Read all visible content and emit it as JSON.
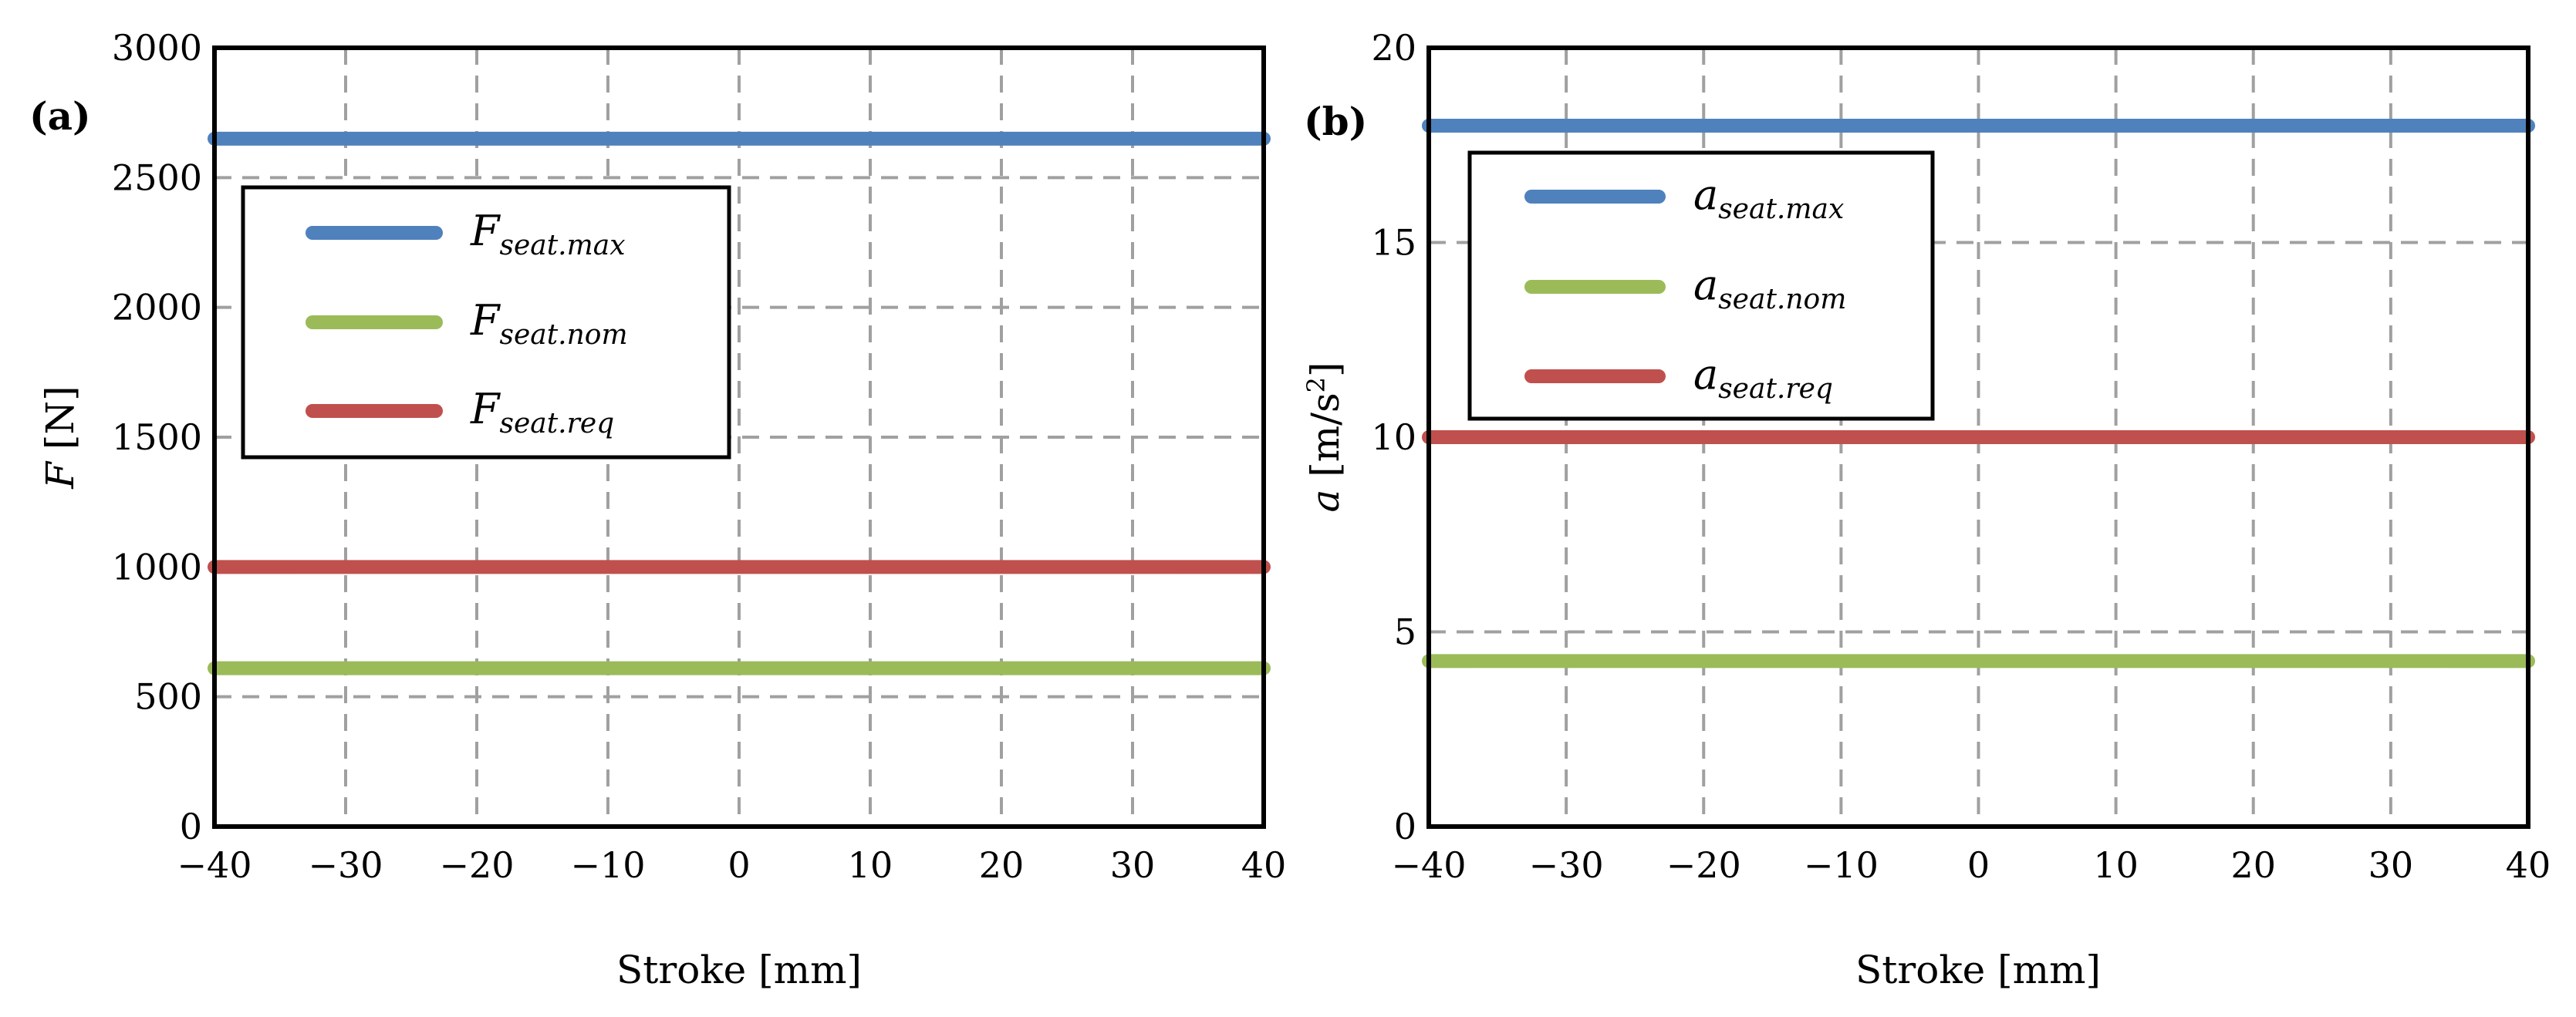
{
  "chart_data": [
    {
      "type": "line",
      "panel_label": "(a)",
      "xlabel": "Stroke [mm]",
      "ylabel_symbol": "F",
      "ylabel_unit": "[N]",
      "xlim": [
        -40,
        40
      ],
      "ylim": [
        0,
        3000
      ],
      "xticks": [
        -40,
        -30,
        -20,
        -10,
        0,
        10,
        20,
        30,
        40
      ],
      "yticks": [
        0,
        500,
        1000,
        1500,
        2000,
        2500,
        3000
      ],
      "x_tick_labels": [
        "−40",
        "−30",
        "−20",
        "−10",
        "0",
        "10",
        "20",
        "30",
        "40"
      ],
      "y_tick_labels": [
        "0",
        "500",
        "1000",
        "1500",
        "2000",
        "2500",
        "3000"
      ],
      "grid": true,
      "legend_position": "upper-left",
      "series": [
        {
          "name_main": "F",
          "name_sub": "seat.max",
          "color": "#4f81bd",
          "x": [
            -40,
            40
          ],
          "y": [
            2650,
            2650
          ]
        },
        {
          "name_main": "F",
          "name_sub": "seat.nom",
          "color": "#9bbb59",
          "x": [
            -40,
            40
          ],
          "y": [
            610,
            610
          ]
        },
        {
          "name_main": "F",
          "name_sub": "seat.req",
          "color": "#c0504d",
          "x": [
            -40,
            40
          ],
          "y": [
            1000,
            1000
          ]
        }
      ]
    },
    {
      "type": "line",
      "panel_label": "(b)",
      "xlabel": "Stroke [mm]",
      "ylabel_symbol": "a",
      "ylabel_unit": "[m/s",
      "ylabel_sup": "2",
      "ylabel_close": "]",
      "xlim": [
        -40,
        40
      ],
      "ylim": [
        0,
        20
      ],
      "xticks": [
        -40,
        -30,
        -20,
        -10,
        0,
        10,
        20,
        30,
        40
      ],
      "yticks": [
        0,
        5,
        10,
        15,
        20
      ],
      "x_tick_labels": [
        "−40",
        "−30",
        "−20",
        "−10",
        "0",
        "10",
        "20",
        "30",
        "40"
      ],
      "y_tick_labels": [
        "0",
        "5",
        "10",
        "15",
        "20"
      ],
      "grid": true,
      "legend_position": "upper-left",
      "series": [
        {
          "name_main": "a",
          "name_sub": "seat.max",
          "color": "#4f81bd",
          "x": [
            -40,
            40
          ],
          "y": [
            18.0,
            18.0
          ]
        },
        {
          "name_main": "a",
          "name_sub": "seat.nom",
          "color": "#9bbb59",
          "x": [
            -40,
            40
          ],
          "y": [
            4.25,
            4.25
          ]
        },
        {
          "name_main": "a",
          "name_sub": "seat.req",
          "color": "#c0504d",
          "x": [
            -40,
            40
          ],
          "y": [
            10.0,
            10.0
          ]
        }
      ]
    }
  ]
}
